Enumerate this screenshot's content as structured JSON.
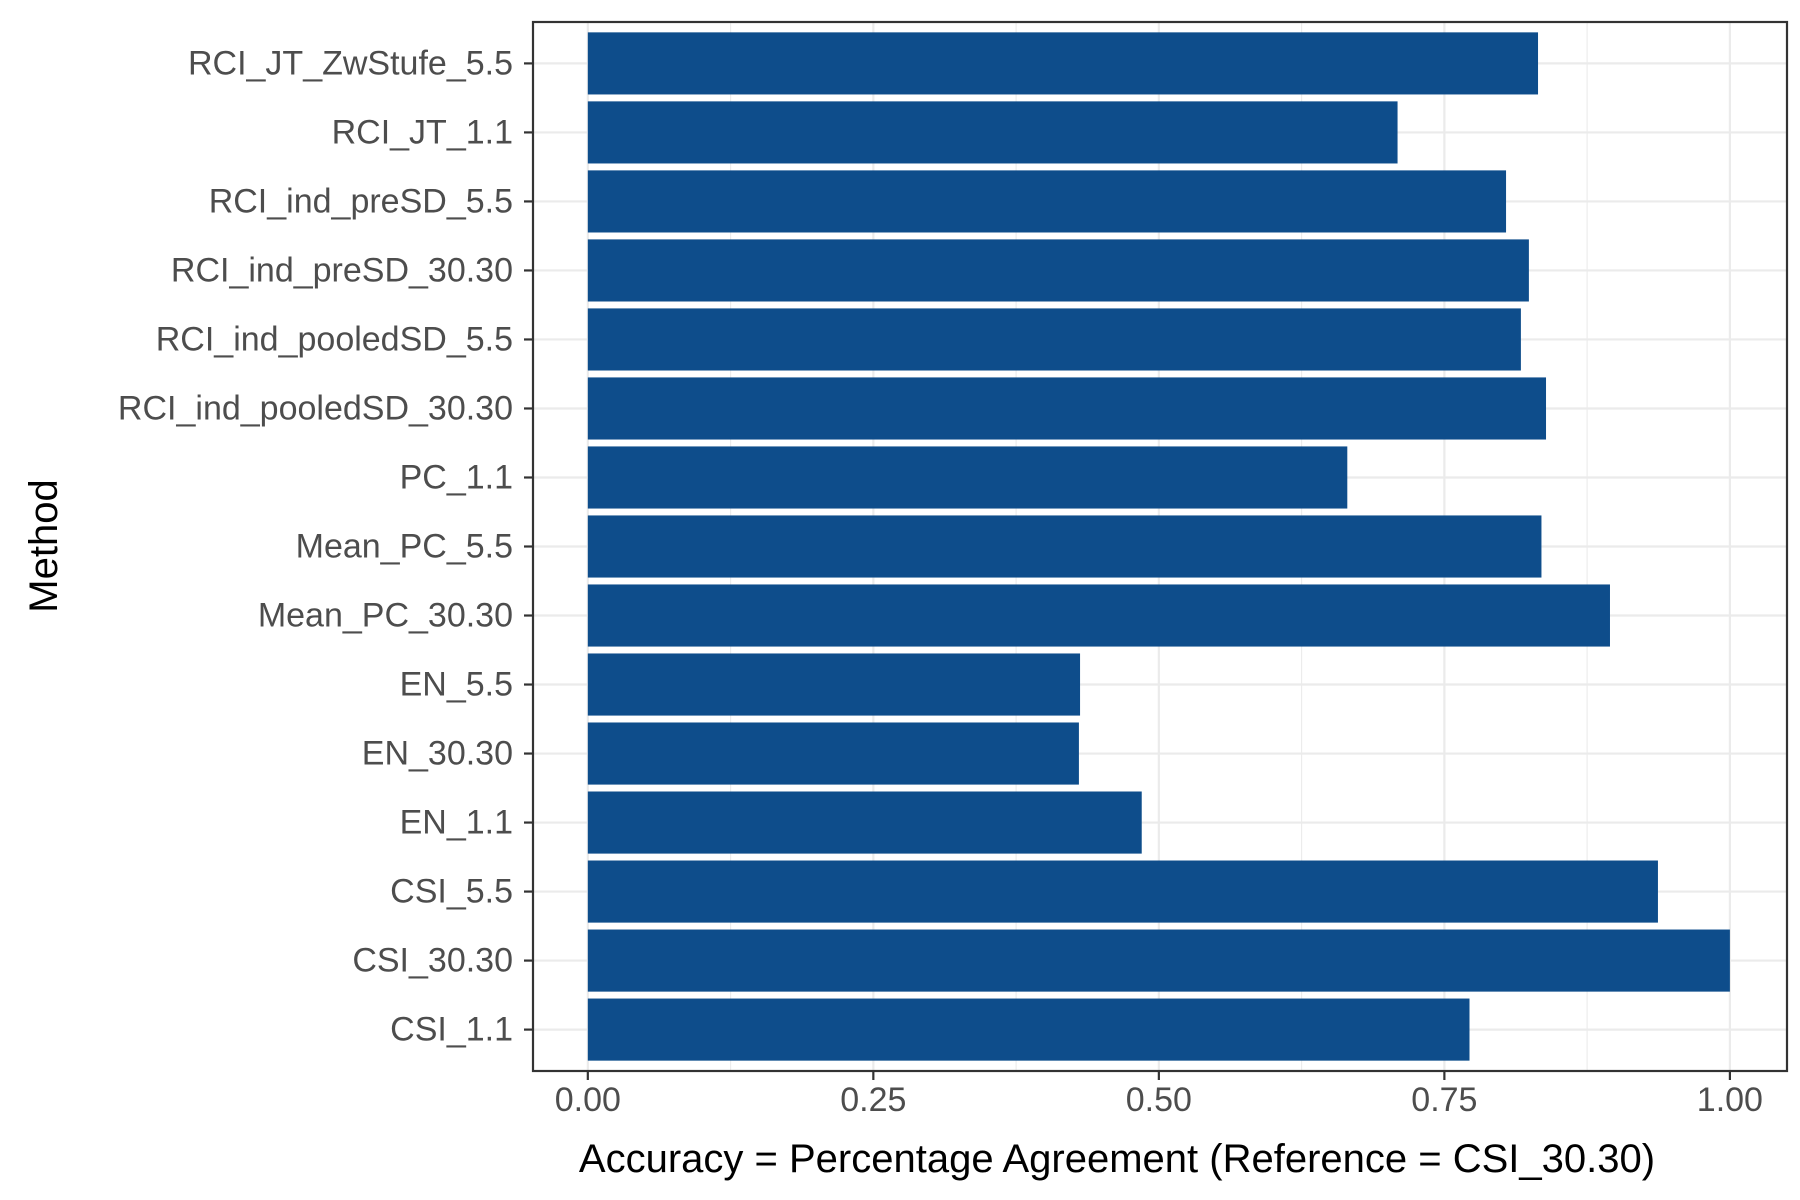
{
  "chart_data": {
    "type": "bar",
    "orientation": "horizontal",
    "title": "",
    "xlabel": "Accuracy = Percentage Agreement (Reference = CSI_30.30)",
    "ylabel": "Method",
    "xlim": [
      -0.048,
      1.05
    ],
    "x_ticks": [
      0.0,
      0.25,
      0.5,
      0.75,
      1.0
    ],
    "x_tick_labels": [
      "0.00",
      "0.25",
      "0.50",
      "0.75",
      "1.00"
    ],
    "grid": true,
    "bar_color": "#0e4d8b",
    "categories": [
      "RCI_JT_ZwStufe_5.5",
      "RCI_JT_1.1",
      "RCI_ind_preSD_5.5",
      "RCI_ind_preSD_30.30",
      "RCI_ind_pooledSD_5.5",
      "RCI_ind_pooledSD_30.30",
      "PC_1.1",
      "Mean_PC_5.5",
      "Mean_PC_30.30",
      "EN_5.5",
      "EN_30.30",
      "EN_1.1",
      "CSI_5.5",
      "CSI_30.30",
      "CSI_1.1"
    ],
    "values": [
      0.832,
      0.709,
      0.804,
      0.824,
      0.817,
      0.839,
      0.665,
      0.835,
      0.895,
      0.431,
      0.43,
      0.485,
      0.937,
      1.0,
      0.772
    ]
  }
}
